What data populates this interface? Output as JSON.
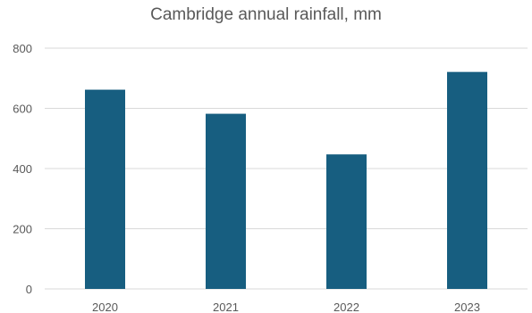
{
  "chart_data": {
    "type": "bar",
    "title": "Cambridge annual rainfall, mm",
    "xlabel": "",
    "ylabel": "",
    "categories": [
      "2020",
      "2021",
      "2022",
      "2023"
    ],
    "values": [
      662,
      582,
      447,
      721
    ],
    "ylim": [
      0,
      800
    ],
    "yticks": [
      0,
      200,
      400,
      600,
      800
    ],
    "grid": true,
    "legend": "none",
    "bar_color": "#175e80",
    "grid_color": "#d9d9d9",
    "text_color": "#595959"
  }
}
